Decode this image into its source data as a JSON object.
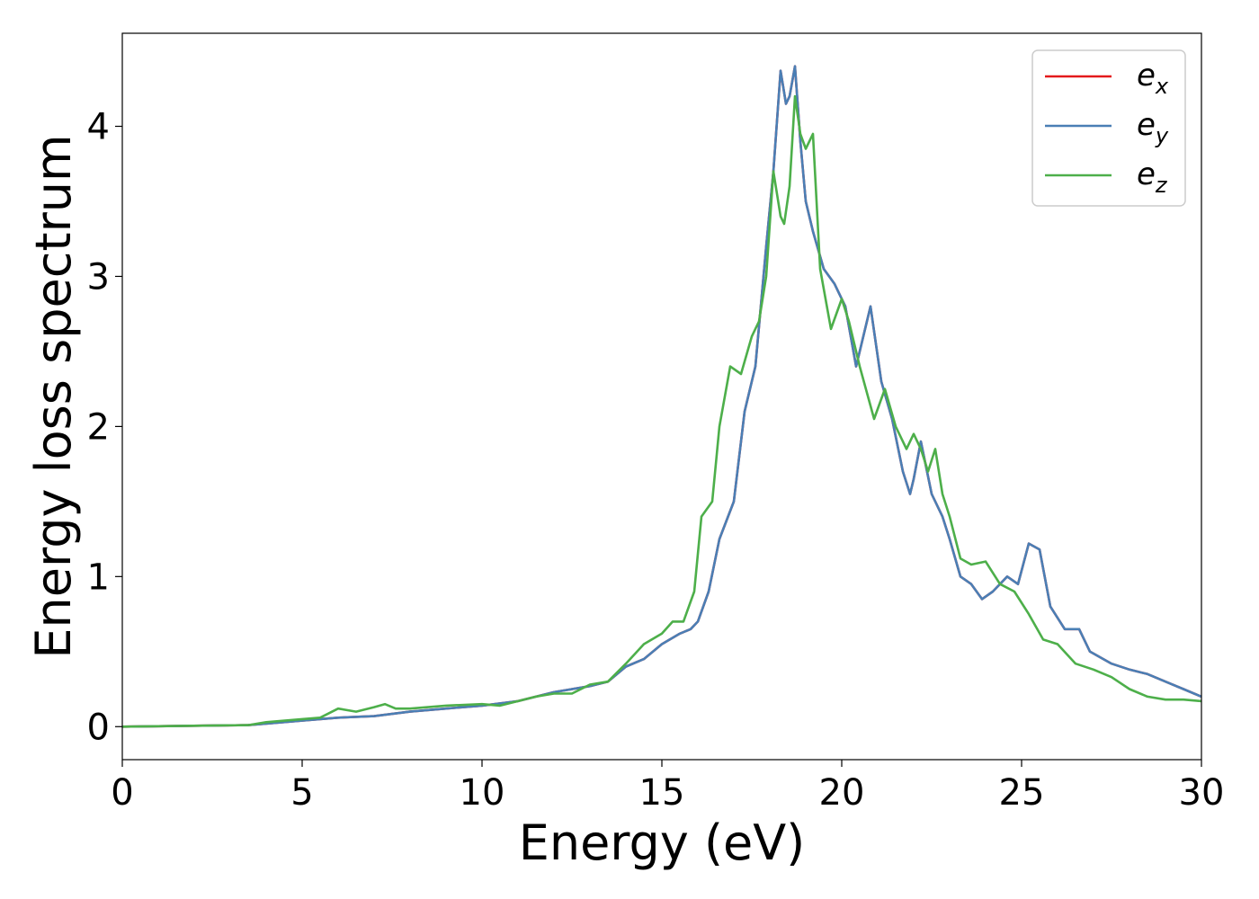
{
  "chart_data": {
    "type": "line",
    "xlabel": "Energy (eV)",
    "ylabel": "Energy loss spectrum",
    "xlim": [
      0,
      30
    ],
    "ylim": [
      -0.22,
      4.62
    ],
    "xticks": [
      "0",
      "5",
      "10",
      "15",
      "20",
      "25",
      "30"
    ],
    "yticks": [
      "0",
      "1",
      "2",
      "3",
      "4"
    ],
    "grid": false,
    "legend_position": "top-right",
    "series": [
      {
        "name": "e",
        "subscript": "x",
        "color": "#e41a1c",
        "x": [
          0,
          3.5,
          4,
          5,
          6,
          7,
          8,
          9,
          10,
          11,
          12,
          13,
          13.5,
          14,
          14.5,
          15,
          15.5,
          15.8,
          16,
          16.3,
          16.6,
          17,
          17.3,
          17.6,
          17.9,
          18.1,
          18.3,
          18.45,
          18.55,
          18.7,
          18.85,
          19.0,
          19.2,
          19.5,
          19.8,
          20.1,
          20.4,
          20.8,
          21.1,
          21.4,
          21.7,
          21.9,
          22.0,
          22.2,
          22.5,
          22.8,
          23.0,
          23.3,
          23.6,
          23.9,
          24.2,
          24.6,
          24.9,
          25.2,
          25.5,
          25.8,
          26.2,
          26.6,
          26.9,
          27.5,
          28,
          28.5,
          29,
          29.5,
          30
        ],
        "y": [
          0,
          0.01,
          0.02,
          0.04,
          0.06,
          0.07,
          0.1,
          0.12,
          0.14,
          0.17,
          0.23,
          0.27,
          0.3,
          0.4,
          0.45,
          0.55,
          0.62,
          0.65,
          0.7,
          0.9,
          1.25,
          1.5,
          2.1,
          2.4,
          3.2,
          3.7,
          4.37,
          4.15,
          4.2,
          4.4,
          3.9,
          3.5,
          3.3,
          3.05,
          2.95,
          2.8,
          2.4,
          2.8,
          2.3,
          2.05,
          1.7,
          1.55,
          1.65,
          1.9,
          1.55,
          1.4,
          1.25,
          1.0,
          0.95,
          0.85,
          0.9,
          1.0,
          0.95,
          1.22,
          1.18,
          0.8,
          0.65,
          0.65,
          0.5,
          0.42,
          0.38,
          0.35,
          0.3,
          0.25,
          0.2
        ]
      },
      {
        "name": "e",
        "subscript": "y",
        "color": "#4a7fb5",
        "x": [
          0,
          3.5,
          4,
          5,
          6,
          7,
          8,
          9,
          10,
          11,
          12,
          13,
          13.5,
          14,
          14.5,
          15,
          15.5,
          15.8,
          16,
          16.3,
          16.6,
          17,
          17.3,
          17.6,
          17.9,
          18.1,
          18.3,
          18.45,
          18.55,
          18.7,
          18.85,
          19.0,
          19.2,
          19.5,
          19.8,
          20.1,
          20.4,
          20.8,
          21.1,
          21.4,
          21.7,
          21.9,
          22.0,
          22.2,
          22.5,
          22.8,
          23.0,
          23.3,
          23.6,
          23.9,
          24.2,
          24.6,
          24.9,
          25.2,
          25.5,
          25.8,
          26.2,
          26.6,
          26.9,
          27.5,
          28,
          28.5,
          29,
          29.5,
          30
        ],
        "y": [
          0,
          0.01,
          0.02,
          0.04,
          0.06,
          0.07,
          0.1,
          0.12,
          0.14,
          0.17,
          0.23,
          0.27,
          0.3,
          0.4,
          0.45,
          0.55,
          0.62,
          0.65,
          0.7,
          0.9,
          1.25,
          1.5,
          2.1,
          2.4,
          3.2,
          3.7,
          4.37,
          4.15,
          4.2,
          4.4,
          3.9,
          3.5,
          3.3,
          3.05,
          2.95,
          2.8,
          2.4,
          2.8,
          2.3,
          2.05,
          1.7,
          1.55,
          1.65,
          1.9,
          1.55,
          1.4,
          1.25,
          1.0,
          0.95,
          0.85,
          0.9,
          1.0,
          0.95,
          1.22,
          1.18,
          0.8,
          0.65,
          0.65,
          0.5,
          0.42,
          0.38,
          0.35,
          0.3,
          0.25,
          0.2
        ]
      },
      {
        "name": "e",
        "subscript": "z",
        "color": "#4daf4a",
        "x": [
          0,
          3.5,
          4,
          5,
          5.5,
          6,
          6.5,
          7,
          7.3,
          7.6,
          8,
          9,
          10,
          10.5,
          11,
          11.5,
          12,
          12.5,
          13,
          13.5,
          14,
          14.5,
          15,
          15.3,
          15.6,
          15.9,
          16.1,
          16.4,
          16.6,
          16.9,
          17.2,
          17.5,
          17.7,
          17.9,
          18.1,
          18.3,
          18.4,
          18.55,
          18.7,
          18.85,
          19.0,
          19.2,
          19.4,
          19.7,
          20.0,
          20.2,
          20.5,
          20.9,
          21.2,
          21.5,
          21.8,
          22.0,
          22.2,
          22.4,
          22.6,
          22.8,
          23.0,
          23.3,
          23.6,
          24.0,
          24.4,
          24.8,
          25.2,
          25.6,
          26.0,
          26.5,
          27.0,
          27.5,
          28.0,
          28.5,
          29,
          29.5,
          30
        ],
        "y": [
          0,
          0.01,
          0.03,
          0.05,
          0.06,
          0.12,
          0.1,
          0.13,
          0.15,
          0.12,
          0.12,
          0.14,
          0.15,
          0.14,
          0.17,
          0.2,
          0.22,
          0.22,
          0.28,
          0.3,
          0.42,
          0.55,
          0.62,
          0.7,
          0.7,
          0.9,
          1.4,
          1.5,
          2.0,
          2.4,
          2.35,
          2.6,
          2.7,
          3.0,
          3.7,
          3.4,
          3.35,
          3.6,
          4.2,
          3.95,
          3.85,
          3.95,
          3.05,
          2.65,
          2.85,
          2.7,
          2.4,
          2.05,
          2.25,
          2.0,
          1.85,
          1.95,
          1.85,
          1.7,
          1.85,
          1.55,
          1.4,
          1.12,
          1.08,
          1.1,
          0.95,
          0.9,
          0.75,
          0.58,
          0.55,
          0.42,
          0.38,
          0.33,
          0.25,
          0.2,
          0.18,
          0.18,
          0.17
        ]
      }
    ]
  }
}
